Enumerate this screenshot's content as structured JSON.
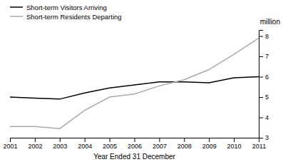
{
  "chart_data": {
    "type": "line",
    "xlabel": "Year Ended 31 December",
    "ylabel": "million",
    "x": [
      2001,
      2002,
      2003,
      2004,
      2005,
      2006,
      2007,
      2008,
      2009,
      2010,
      2011
    ],
    "series": [
      {
        "name": "Short-term Visitors Arriving",
        "color": "#000000",
        "values": [
          5.0,
          4.95,
          4.9,
          5.2,
          5.45,
          5.6,
          5.75,
          5.75,
          5.7,
          5.95,
          6.0
        ]
      },
      {
        "name": "Short-term Residents Departing",
        "color": "#aaaaaa",
        "values": [
          3.55,
          3.55,
          3.45,
          4.35,
          5.0,
          5.15,
          5.55,
          5.85,
          6.35,
          7.1,
          7.9
        ]
      }
    ],
    "xlim": [
      2001,
      2011
    ],
    "xticks": [
      2001,
      2002,
      2003,
      2004,
      2005,
      2006,
      2007,
      2008,
      2009,
      2010,
      2011
    ],
    "ylim": [
      3.0,
      8.3
    ],
    "yticks": [
      3,
      4,
      5,
      6,
      7,
      8
    ],
    "grid": false,
    "legend": "top-left"
  }
}
